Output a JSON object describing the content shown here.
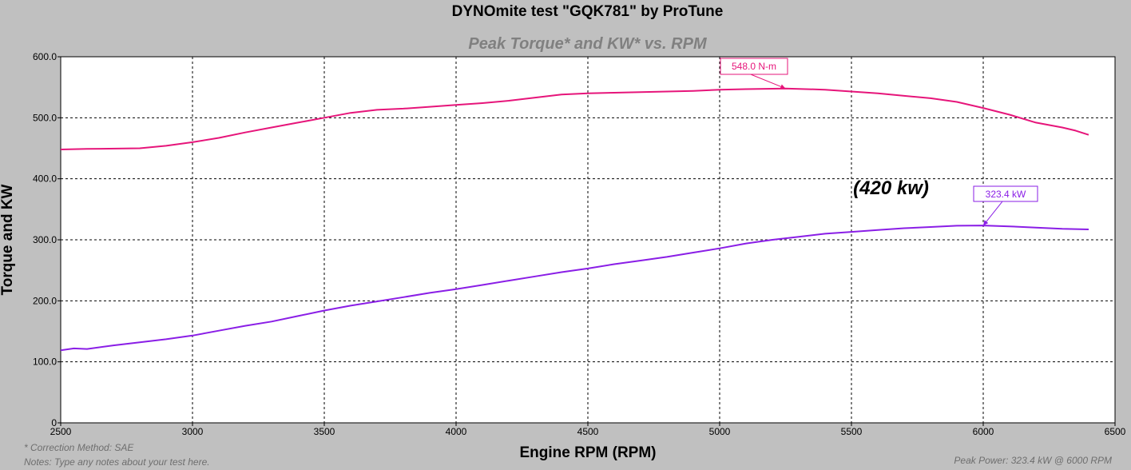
{
  "chart_data": {
    "type": "line",
    "title": "DYNOmite test \"GQK781\" by ProTune",
    "subtitle": "Peak Torque* and KW* vs. RPM",
    "xlabel": "Engine RPM (RPM)",
    "ylabel": "Torque and KW",
    "xlim": [
      2500,
      6500
    ],
    "ylim": [
      0,
      600
    ],
    "x_ticks": [
      "2500",
      "3000",
      "3500",
      "4000",
      "4500",
      "5000",
      "5500",
      "6000",
      "6500"
    ],
    "y_ticks": [
      "0",
      "100.0",
      "200.0",
      "300.0",
      "400.0",
      "500.0",
      "600.0"
    ],
    "grid": true,
    "series": [
      {
        "name": "Torque",
        "color": "#e6157a",
        "points": [
          [
            2500,
            448
          ],
          [
            2600,
            449
          ],
          [
            2800,
            450
          ],
          [
            2900,
            454
          ],
          [
            3000,
            460
          ],
          [
            3100,
            467
          ],
          [
            3200,
            476
          ],
          [
            3300,
            484
          ],
          [
            3400,
            492
          ],
          [
            3500,
            500
          ],
          [
            3600,
            508
          ],
          [
            3700,
            513
          ],
          [
            3800,
            515
          ],
          [
            3900,
            518
          ],
          [
            4000,
            521
          ],
          [
            4100,
            524
          ],
          [
            4200,
            528
          ],
          [
            4300,
            533
          ],
          [
            4400,
            538
          ],
          [
            4500,
            540
          ],
          [
            4600,
            541
          ],
          [
            4700,
            542
          ],
          [
            4800,
            543
          ],
          [
            4900,
            544
          ],
          [
            5000,
            546
          ],
          [
            5100,
            547
          ],
          [
            5250,
            548
          ],
          [
            5400,
            546
          ],
          [
            5500,
            543
          ],
          [
            5600,
            540
          ],
          [
            5700,
            536
          ],
          [
            5800,
            532
          ],
          [
            5900,
            526
          ],
          [
            6000,
            516
          ],
          [
            6100,
            505
          ],
          [
            6200,
            492
          ],
          [
            6300,
            484
          ],
          [
            6350,
            479
          ],
          [
            6400,
            472
          ]
        ]
      },
      {
        "name": "KW",
        "color": "#8a1ee6",
        "points": [
          [
            2500,
            119
          ],
          [
            2550,
            122
          ],
          [
            2600,
            121
          ],
          [
            2700,
            127
          ],
          [
            2800,
            132
          ],
          [
            2900,
            137
          ],
          [
            3000,
            143
          ],
          [
            3100,
            151
          ],
          [
            3200,
            159
          ],
          [
            3300,
            166
          ],
          [
            3400,
            175
          ],
          [
            3500,
            184
          ],
          [
            3600,
            192
          ],
          [
            3700,
            199
          ],
          [
            3800,
            206
          ],
          [
            3900,
            213
          ],
          [
            4000,
            219
          ],
          [
            4100,
            226
          ],
          [
            4200,
            233
          ],
          [
            4300,
            240
          ],
          [
            4400,
            247
          ],
          [
            4500,
            253
          ],
          [
            4600,
            260
          ],
          [
            4700,
            266
          ],
          [
            4800,
            272
          ],
          [
            4900,
            279
          ],
          [
            5000,
            286
          ],
          [
            5100,
            294
          ],
          [
            5200,
            300
          ],
          [
            5300,
            305
          ],
          [
            5400,
            310
          ],
          [
            5500,
            313
          ],
          [
            5600,
            316
          ],
          [
            5700,
            319
          ],
          [
            5800,
            321
          ],
          [
            5900,
            323
          ],
          [
            6000,
            323.4
          ],
          [
            6100,
            322
          ],
          [
            6200,
            320
          ],
          [
            6300,
            318
          ],
          [
            6400,
            317
          ]
        ]
      }
    ],
    "annotations": [
      {
        "text": "548.0 N-m",
        "x": 5250,
        "y": 548,
        "color": "#e6157a"
      },
      {
        "text": "323.4 kW",
        "x": 6000,
        "y": 323.4,
        "color": "#8a1ee6"
      },
      {
        "text": "(420 kw)",
        "x": 5650,
        "y": 375,
        "color": "#000000"
      }
    ]
  },
  "footer": {
    "correction": "* Correction Method: SAE",
    "notes": "Notes: Type any notes about your test here.",
    "peak_power": "Peak Power: 323.4 kW @ 6000 RPM"
  }
}
